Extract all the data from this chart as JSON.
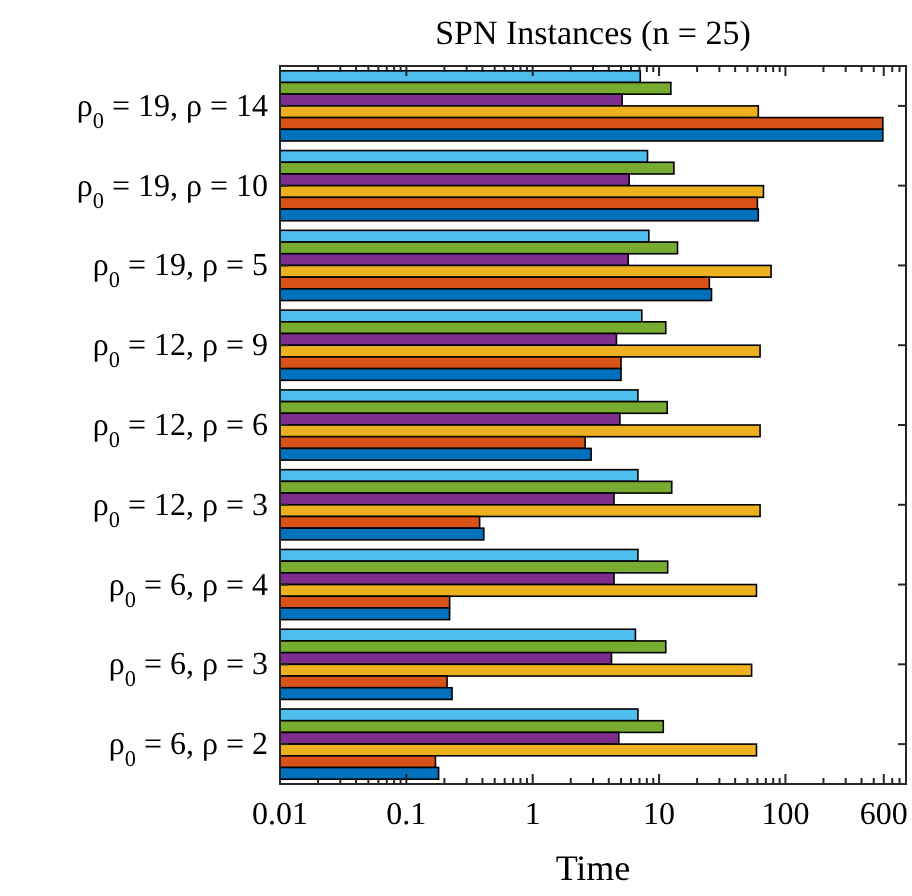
{
  "chart_data": {
    "type": "bar",
    "orientation": "horizontal",
    "title": "SPN Instances (n = 25)",
    "xlabel": "Time",
    "log": "x",
    "grid": false,
    "categories": [
      "ρ$_{0}$ = 19, ρ = 14",
      "ρ$_{0}$ = 19, ρ = 10",
      "ρ$_{0}$ = 19, ρ = 5",
      "ρ$_{0}$ = 12, ρ = 9",
      "ρ$_{0}$ = 12, ρ = 6",
      "ρ$_{0}$ = 12, ρ = 3",
      "ρ$_{0}$ = 6, ρ = 4",
      "ρ$_{0}$ = 6, ρ = 3",
      "ρ$_{0}$ = 6, ρ = 2"
    ],
    "series": [
      {
        "color": "#4dbeee",
        "values": [
          7.1,
          8.1,
          8.3,
          7.3,
          6.8,
          6.8,
          6.8,
          6.5,
          6.8
        ]
      },
      {
        "color": "#77ac30",
        "values": [
          12.4,
          13.1,
          14,
          11.3,
          11.6,
          12.6,
          11.7,
          11.3,
          10.8
        ]
      },
      {
        "color": "#7e2f8e",
        "values": [
          5.1,
          5.8,
          5.7,
          4.6,
          4.9,
          4.4,
          4.4,
          4.2,
          4.8
        ]
      },
      {
        "color": "#edb120",
        "values": [
          61,
          67,
          77,
          63,
          63,
          63,
          59,
          54,
          59
        ]
      },
      {
        "color": "#d95319",
        "values": [
          590,
          60,
          25,
          5.0,
          2.6,
          0.38,
          0.22,
          0.21,
          0.17
        ]
      },
      {
        "color": "#0072bd",
        "values": [
          590,
          61,
          26,
          5.0,
          2.9,
          0.41,
          0.22,
          0.23,
          0.18
        ]
      }
    ],
    "xlim": [
      0.01,
      900
    ],
    "xticks": [
      0.01,
      {
        "value": 0.02,
        "label": null
      },
      {
        "value": 0.03,
        "label": null
      },
      {
        "value": 0.04,
        "label": null
      },
      {
        "value": 0.05,
        "label": null
      },
      {
        "value": 0.06,
        "label": null
      },
      {
        "value": 0.07,
        "label": null
      },
      {
        "value": 0.08,
        "label": null
      },
      {
        "value": 0.09,
        "label": null
      },
      0.1,
      {
        "value": 0.2,
        "label": null
      },
      {
        "value": 0.3,
        "label": null
      },
      {
        "value": 0.4,
        "label": null
      },
      {
        "value": 0.5,
        "label": null
      },
      {
        "value": 0.6,
        "label": null
      },
      {
        "value": 0.7,
        "label": null
      },
      {
        "value": 0.8,
        "label": null
      },
      {
        "value": 0.9,
        "label": null
      },
      1,
      {
        "value": 2,
        "label": null
      },
      {
        "value": 3,
        "label": null
      },
      {
        "value": 4,
        "label": null
      },
      {
        "value": 5,
        "label": null
      },
      {
        "value": 6,
        "label": null
      },
      {
        "value": 7,
        "label": null
      },
      {
        "value": 8,
        "label": null
      },
      {
        "value": 9,
        "label": null
      },
      10,
      {
        "value": 20,
        "label": null
      },
      {
        "value": 30,
        "label": null
      },
      {
        "value": 40,
        "label": null
      },
      {
        "value": 50,
        "label": null
      },
      {
        "value": 60,
        "label": null
      },
      {
        "value": 70,
        "label": null
      },
      {
        "value": 80,
        "label": null
      },
      {
        "value": 90,
        "label": null
      },
      100,
      {
        "value": 200,
        "label": null
      },
      {
        "value": 300,
        "label": null
      },
      {
        "value": 400,
        "label": null
      },
      {
        "value": 500,
        "label": null
      },
      600,
      {
        "value": 700,
        "label": null
      },
      {
        "value": 800,
        "label": null
      }
    ]
  }
}
